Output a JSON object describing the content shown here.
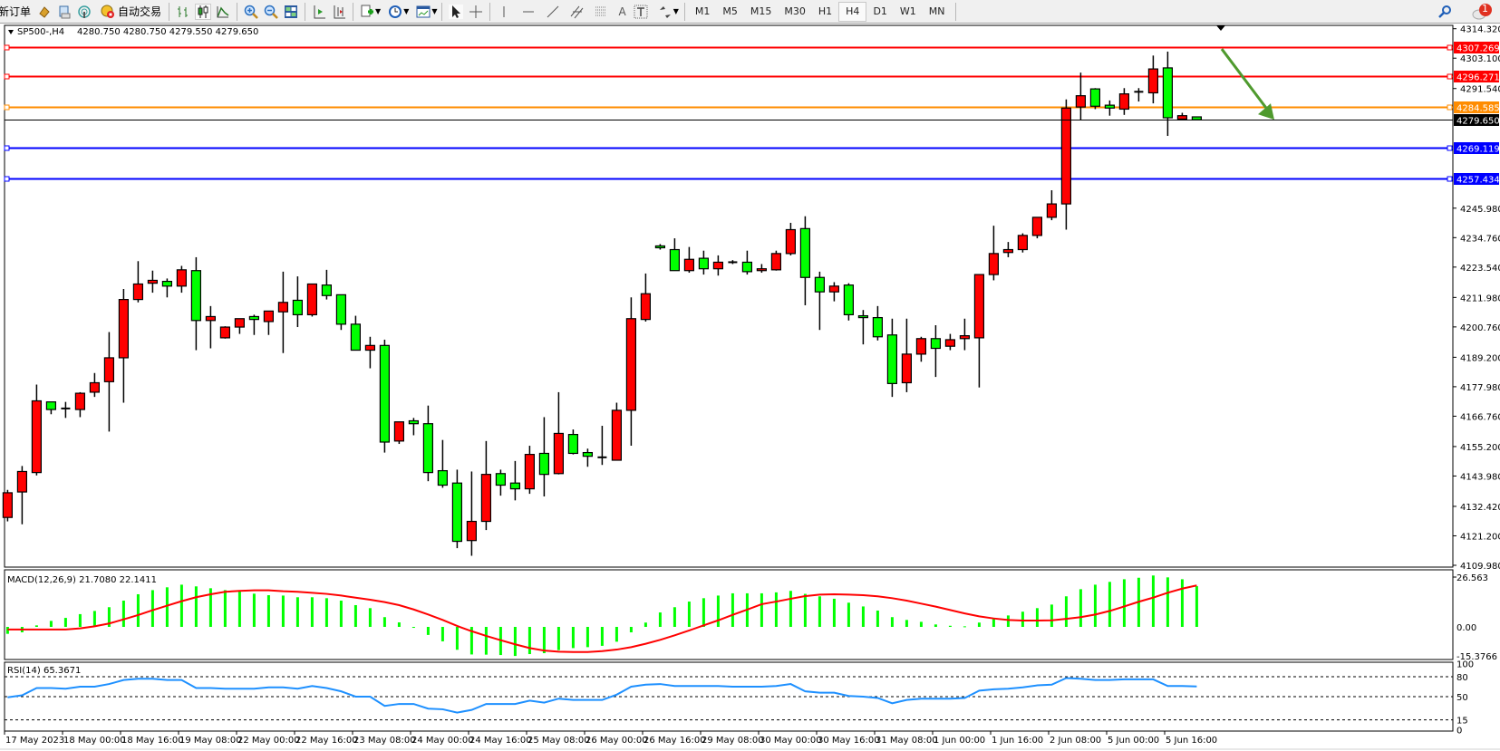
{
  "toolbar": {
    "new_order_label": "新订单",
    "auto_trading_label": "自动交易",
    "tool_icons": [
      "new-order-icon",
      "market-watch-icon",
      "navigator-icon",
      "signals-icon",
      "auto-trading-icon",
      "bar-chart-icon",
      "candlestick-icon",
      "line-chart-icon",
      "zoom-in-icon",
      "zoom-out-icon",
      "tile-windows-icon",
      "auto-scroll-icon",
      "chart-shift-icon",
      "indicators-icon",
      "periods-icon",
      "templates-icon",
      "cursor-icon",
      "crosshair-icon",
      "vertical-line-icon",
      "horizontal-line-icon",
      "trendline-icon",
      "equidistant-channel-icon",
      "fibonacci-icon",
      "text-icon",
      "text-label-icon",
      "arrows-icon"
    ],
    "text_tool_label": "A",
    "timeframes": [
      "M1",
      "M5",
      "M15",
      "M30",
      "H1",
      "H4",
      "D1",
      "W1",
      "MN"
    ],
    "active_timeframe": "H4",
    "notification_count": "1"
  },
  "chart": {
    "symbol": "SP500-,H4",
    "ohlc_readout": "4280.750 4280.750 4279.550 4279.650",
    "bull_color": "#ff0000",
    "bear_color": "#00ff00",
    "price_ticks": [
      "4314.320",
      "4303.100",
      "4291.540",
      "4245.980",
      "4234.760",
      "4223.540",
      "4211.980",
      "4200.760",
      "4189.200",
      "4177.980",
      "4166.760",
      "4155.200",
      "4143.980",
      "4132.420",
      "4121.200",
      "4109.980"
    ],
    "price_range": [
      4109.98,
      4314.32
    ],
    "bid": {
      "value": "4279.650",
      "color": "#000000"
    },
    "levels": [
      {
        "value": "4307.269",
        "color": "#ff0000"
      },
      {
        "value": "4296.271",
        "color": "#ff0000"
      },
      {
        "value": "4284.585",
        "color": "#ff8c00"
      },
      {
        "value": "4269.119",
        "color": "#0000ff"
      },
      {
        "value": "4257.434",
        "color": "#0000ff"
      }
    ],
    "arrow": {
      "color": "#4f9a2e",
      "direction": "down-right",
      "from_price": 4307.3,
      "to_price": 4280.0
    },
    "candles": [
      [
        4128.2,
        4138.7,
        4126.7,
        4137.6
      ],
      [
        4137.9,
        4147.8,
        4125.6,
        4145.7
      ],
      [
        4145.3,
        4178.8,
        4144.2,
        4172.6
      ],
      [
        4172.2,
        4172.2,
        4167.5,
        4169.3
      ],
      [
        4169.7,
        4172.2,
        4166.1,
        4169.7
      ],
      [
        4169.3,
        4175.9,
        4166.4,
        4175.5
      ],
      [
        4175.9,
        4183.2,
        4174.1,
        4179.5
      ],
      [
        4179.9,
        4198.8,
        4160.9,
        4189.0
      ],
      [
        4189.0,
        4215.2,
        4171.9,
        4211.2
      ],
      [
        4211.2,
        4225.8,
        4210.1,
        4217.1
      ],
      [
        4217.4,
        4222.2,
        4213.8,
        4218.5
      ],
      [
        4218.1,
        4219.2,
        4212.0,
        4216.3
      ],
      [
        4216.3,
        4224.0,
        4213.8,
        4222.5
      ],
      [
        4222.2,
        4227.3,
        4191.9,
        4203.2
      ],
      [
        4203.2,
        4208.7,
        4192.6,
        4204.7
      ],
      [
        4196.6,
        4201.0,
        4196.3,
        4200.7
      ],
      [
        4200.7,
        4203.9,
        4198.1,
        4203.9
      ],
      [
        4204.7,
        4205.4,
        4197.7,
        4203.6
      ],
      [
        4202.8,
        4206.8,
        4197.7,
        4206.8
      ],
      [
        4206.5,
        4221.8,
        4190.8,
        4210.1
      ],
      [
        4210.9,
        4220.0,
        4200.7,
        4205.4
      ],
      [
        4205.4,
        4217.1,
        4204.7,
        4217.1
      ],
      [
        4216.7,
        4222.5,
        4211.2,
        4212.7
      ],
      [
        4213.0,
        4213.0,
        4199.6,
        4201.8
      ],
      [
        4201.8,
        4205.0,
        4191.9,
        4191.9
      ],
      [
        4191.9,
        4197.0,
        4185.0,
        4193.7
      ],
      [
        4193.7,
        4195.9,
        4152.9,
        4156.9
      ],
      [
        4157.3,
        4164.6,
        4156.2,
        4164.6
      ],
      [
        4165.0,
        4166.1,
        4159.5,
        4163.9
      ],
      [
        4163.9,
        4170.8,
        4142.0,
        4145.3
      ],
      [
        4146.0,
        4157.7,
        4139.5,
        4140.5
      ],
      [
        4141.3,
        4146.4,
        4116.5,
        4119.1
      ],
      [
        4119.4,
        4145.7,
        4113.6,
        4126.7
      ],
      [
        4126.7,
        4157.3,
        4123.4,
        4144.6
      ],
      [
        4144.9,
        4146.4,
        4136.5,
        4140.5
      ],
      [
        4141.3,
        4149.7,
        4134.7,
        4139.1
      ],
      [
        4139.1,
        4155.5,
        4137.2,
        4152.2
      ],
      [
        4152.6,
        4166.4,
        4136.2,
        4144.6
      ],
      [
        4144.9,
        4175.9,
        4144.6,
        4160.2
      ],
      [
        4159.8,
        4161.7,
        4152.2,
        4152.6
      ],
      [
        4152.9,
        4154.4,
        4147.5,
        4151.5
      ],
      [
        4151.1,
        4163.1,
        4148.2,
        4151.1
      ],
      [
        4150.0,
        4171.9,
        4150.0,
        4169.0
      ],
      [
        4169.0,
        4212.0,
        4155.5,
        4203.9
      ],
      [
        4203.6,
        4221.1,
        4202.8,
        4213.4
      ],
      [
        4231.6,
        4232.3,
        4230.2,
        4230.9
      ],
      [
        4230.2,
        4234.5,
        4222.2,
        4222.2
      ],
      [
        4222.2,
        4231.2,
        4221.4,
        4226.5
      ],
      [
        4226.9,
        4229.8,
        4220.7,
        4222.9
      ],
      [
        4222.9,
        4228.0,
        4220.3,
        4225.4
      ],
      [
        4225.4,
        4226.2,
        4224.7,
        4225.4
      ],
      [
        4225.4,
        4229.8,
        4220.7,
        4221.8
      ],
      [
        4222.2,
        4224.7,
        4221.4,
        4222.9
      ],
      [
        4222.5,
        4229.8,
        4222.2,
        4228.7
      ],
      [
        4228.7,
        4240.4,
        4228.0,
        4237.8
      ],
      [
        4238.2,
        4242.9,
        4209.0,
        4219.6
      ],
      [
        4219.6,
        4221.8,
        4199.6,
        4214.1
      ],
      [
        4214.1,
        4217.8,
        4210.5,
        4216.3
      ],
      [
        4216.7,
        4217.4,
        4203.2,
        4205.4
      ],
      [
        4205.0,
        4207.2,
        4194.1,
        4204.3
      ],
      [
        4204.3,
        4208.7,
        4195.6,
        4197.0
      ],
      [
        4197.7,
        4203.9,
        4174.1,
        4179.2
      ],
      [
        4179.5,
        4203.9,
        4175.9,
        4190.4
      ],
      [
        4190.4,
        4197.0,
        4187.5,
        4196.3
      ],
      [
        4196.3,
        4201.4,
        4181.7,
        4192.6
      ],
      [
        4193.4,
        4198.1,
        4191.9,
        4195.9
      ],
      [
        4196.3,
        4203.9,
        4191.9,
        4197.4
      ],
      [
        4196.6,
        4220.7,
        4177.7,
        4220.7
      ],
      [
        4220.7,
        4239.3,
        4218.5,
        4228.7
      ],
      [
        4229.1,
        4233.1,
        4227.3,
        4230.2
      ],
      [
        4230.2,
        4236.4,
        4229.1,
        4235.6
      ],
      [
        4235.6,
        4242.5,
        4234.5,
        4242.5
      ],
      [
        4242.5,
        4252.8,
        4241.4,
        4247.6
      ],
      [
        4247.6,
        4287.4,
        4237.8,
        4284.1
      ],
      [
        4284.5,
        4297.6,
        4279.7,
        4288.8
      ],
      [
        4291.4,
        4291.7,
        4283.7,
        4284.8
      ],
      [
        4285.2,
        4287.0,
        4281.2,
        4284.1
      ],
      [
        4283.7,
        4291.7,
        4281.5,
        4289.5
      ],
      [
        4290.3,
        4291.7,
        4286.6,
        4290.3
      ],
      [
        4289.9,
        4304.1,
        4285.9,
        4299.0
      ],
      [
        4299.4,
        4305.6,
        4273.5,
        4280.4
      ],
      [
        4279.9,
        4282.3,
        4279.9,
        4281.2
      ],
      [
        4280.75,
        4280.75,
        4279.55,
        4279.65
      ]
    ],
    "time_labels": [
      "17 May 2023",
      "18 May 00:00",
      "18 May 16:00",
      "19 May 08:00",
      "22 May 00:00",
      "22 May 16:00",
      "23 May 08:00",
      "24 May 00:00",
      "24 May 16:00",
      "25 May 08:00",
      "26 May 00:00",
      "26 May 16:00",
      "29 May 08:00",
      "30 May 00:00",
      "30 May 16:00",
      "31 May 08:00",
      "1 Jun 00:00",
      "1 Jun 16:00",
      "2 Jun 08:00",
      "5 Jun 00:00",
      "5 Jun 16:00"
    ]
  },
  "macd": {
    "label": "MACD(12,26,9) 21.7080 22.1411",
    "axis_ticks": [
      "26.563",
      "0.00",
      "-15.3766"
    ],
    "range": [
      -15.3766,
      26.563
    ],
    "histogram_color": "#00ff00",
    "signal_color": "#ff0000",
    "histogram": [
      -3.7,
      -2.9,
      0.8,
      3.2,
      4.8,
      6.8,
      8.5,
      10.5,
      14,
      17.4,
      19.6,
      21.1,
      22.5,
      21.6,
      20.6,
      19.6,
      18.8,
      17.7,
      16.9,
      16.7,
      15.8,
      15.8,
      15.3,
      14,
      11.6,
      10,
      5.2,
      2.4,
      -0.5,
      -4.3,
      -7.7,
      -12.2,
      -14.7,
      -14.8,
      -15,
      -15.5,
      -14.5,
      -14,
      -12.4,
      -11.3,
      -10.8,
      -10.1,
      -7.9,
      -2.9,
      2.3,
      7.7,
      10.5,
      13.5,
      15.3,
      16.7,
      17.9,
      17.9,
      17.9,
      18.4,
      19.2,
      17.6,
      16.3,
      15,
      12.9,
      10.9,
      8.7,
      5.2,
      3.7,
      2.7,
      1.3,
      0.6,
      0.3,
      2.3,
      4.7,
      6.1,
      8.1,
      10,
      11.9,
      16.3,
      20.1,
      22.5,
      24,
      25.4,
      26.2,
      27.4,
      26.4,
      25.4,
      21.7
    ],
    "signal": [
      -1.4,
      -1.4,
      -1.4,
      -1.4,
      -1.4,
      -0.8,
      0.3,
      1.8,
      4,
      6.3,
      8.9,
      11.3,
      13.7,
      15.8,
      17.4,
      18.7,
      19.2,
      19.5,
      19.5,
      19,
      18.7,
      18.2,
      17.6,
      16.7,
      15.6,
      14.5,
      13.2,
      11.6,
      9.3,
      6.6,
      3.7,
      0.5,
      -2.3,
      -4.8,
      -7.1,
      -9.3,
      -11.3,
      -12.6,
      -13.2,
      -13.4,
      -13.4,
      -12.9,
      -12.1,
      -10.8,
      -9,
      -6.9,
      -4.5,
      -1.9,
      0.8,
      3.5,
      6.4,
      9.2,
      12.1,
      13.5,
      15,
      16.4,
      17.2,
      17.4,
      17.2,
      16.9,
      16.3,
      15.3,
      14,
      12.4,
      10.8,
      9,
      7.2,
      5.6,
      4.5,
      3.7,
      3.4,
      3.4,
      3.5,
      4.3,
      5.2,
      6.6,
      8.5,
      10.9,
      13.4,
      15.6,
      18.2,
      20.4,
      22.1
    ]
  },
  "rsi": {
    "label": "RSI(14) 65.3671",
    "axis_ticks": [
      "100",
      "80",
      "50",
      "15",
      "0"
    ],
    "levels": [
      80,
      50,
      15
    ],
    "line_color": "#1e90ff",
    "values": [
      49,
      52,
      63,
      63,
      62,
      65,
      65,
      69,
      75,
      77,
      77,
      75,
      75,
      63,
      63,
      62,
      62,
      62,
      64,
      64,
      62,
      66,
      63,
      58,
      50,
      50,
      36,
      39,
      39,
      32,
      31,
      26,
      30,
      39,
      39,
      39,
      44,
      41,
      47,
      45,
      45,
      45,
      53,
      65,
      68,
      69,
      66,
      66,
      66,
      66,
      65,
      65,
      65,
      66,
      69,
      58,
      56,
      56,
      51,
      50,
      48,
      40,
      45,
      47,
      47,
      47,
      48,
      59,
      61,
      62,
      64,
      67,
      68,
      78,
      77,
      75,
      75,
      76,
      76,
      76,
      66,
      66,
      65.37
    ]
  }
}
